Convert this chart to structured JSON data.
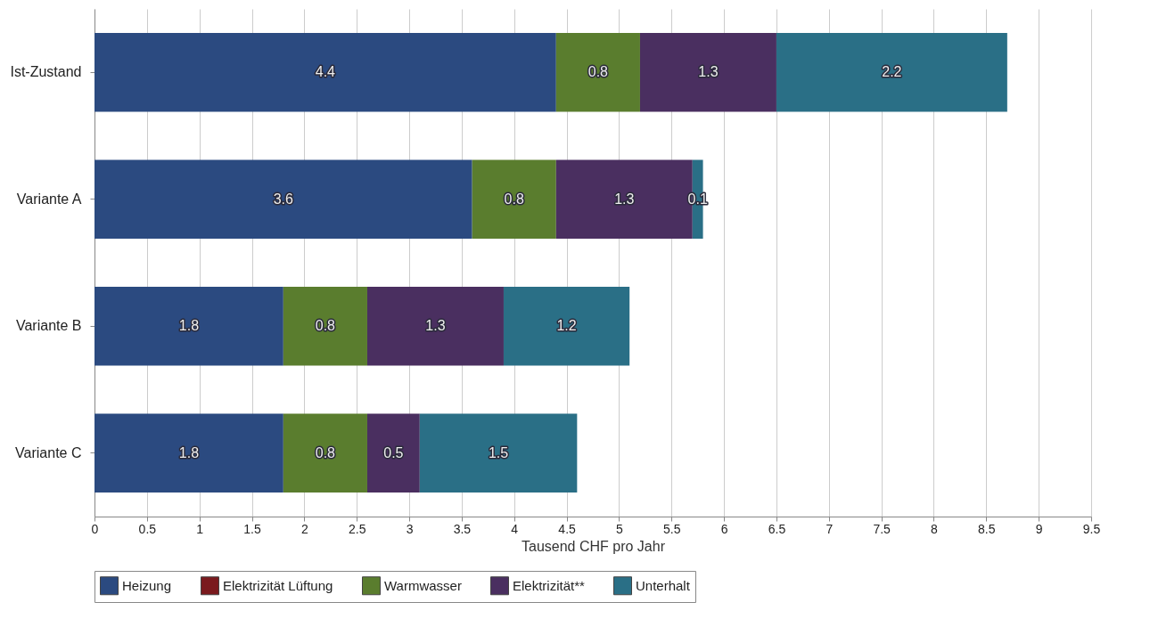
{
  "chart_data": {
    "type": "bar",
    "orientation": "horizontal",
    "stacked": true,
    "data_labels": true,
    "categories": [
      "Ist-Zustand",
      "Variante A",
      "Variante B",
      "Variante C"
    ],
    "series": [
      {
        "name": "Heizung",
        "color": "#2b4a80",
        "values": [
          4.4,
          3.6,
          1.8,
          1.8
        ]
      },
      {
        "name": "Elektrizität Lüftung",
        "color": "#7a1a1e",
        "values": [
          null,
          null,
          null,
          null
        ]
      },
      {
        "name": "Warmwasser",
        "color": "#5a7d2e",
        "values": [
          0.8,
          0.8,
          0.8,
          0.8
        ]
      },
      {
        "name": "Elektrizität**",
        "color": "#4a2f60",
        "values": [
          1.3,
          1.3,
          1.3,
          0.5
        ]
      },
      {
        "name": "Unterhalt",
        "color": "#2a6f86",
        "values": [
          2.2,
          0.1,
          1.2,
          1.5
        ]
      }
    ],
    "xlabel": "Tausend CHF pro Jahr",
    "xlim": [
      0,
      9.5
    ],
    "xticks": [
      0,
      0.5,
      1,
      1.5,
      2,
      2.5,
      3,
      3.5,
      4,
      4.5,
      5,
      5.5,
      6,
      6.5,
      7,
      7.5,
      8,
      8.5,
      9,
      9.5
    ],
    "grid": "x",
    "legend": "bottom"
  }
}
